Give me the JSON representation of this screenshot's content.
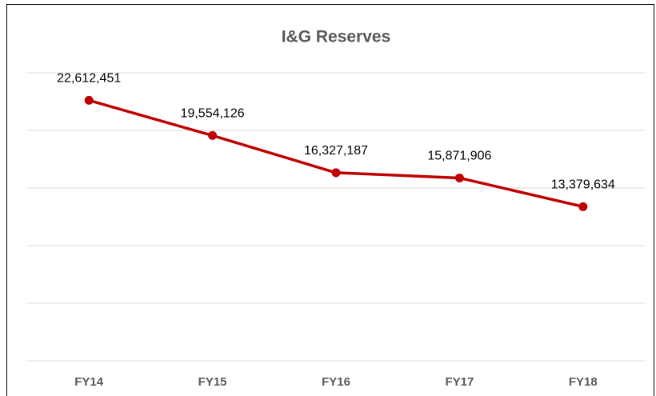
{
  "chart_data": {
    "type": "line",
    "title": "I&G Reserves",
    "categories": [
      "FY14",
      "FY15",
      "FY16",
      "FY17",
      "FY18"
    ],
    "series": [
      {
        "name": "I&G Reserves",
        "color": "#c00000",
        "values": [
          22612451,
          19554126,
          16327187,
          15871906,
          13379634
        ],
        "value_labels": [
          "22,612,451",
          "19,554,126",
          "16,327,187",
          "15,871,906",
          "13,379,634"
        ]
      }
    ],
    "ylim": [
      0,
      25000000
    ],
    "yticks": [
      0,
      5000000,
      10000000,
      15000000,
      20000000,
      25000000
    ],
    "grid": true
  }
}
